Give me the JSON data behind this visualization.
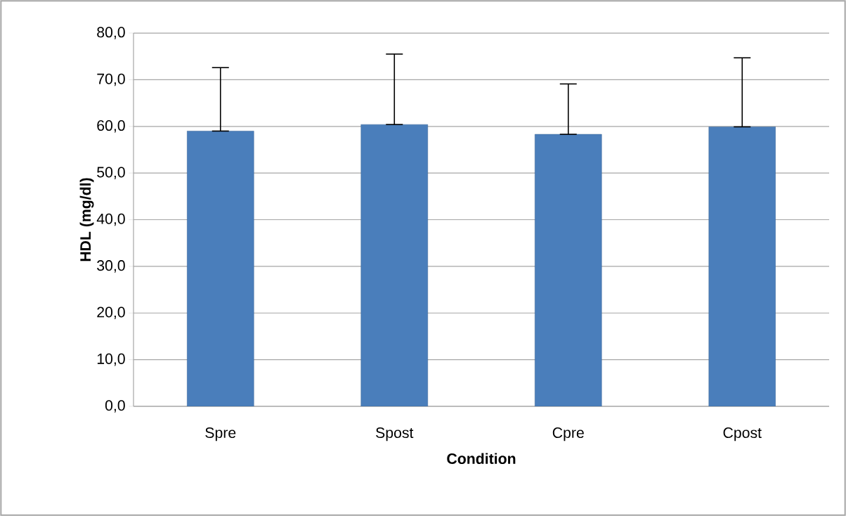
{
  "chart_data": {
    "type": "bar",
    "xlabel": "Condition",
    "ylabel": "HDL (mg/dl)",
    "categories": [
      "Spre",
      "Spost",
      "Cpre",
      "Cpost"
    ],
    "values": [
      59.0,
      60.4,
      58.3,
      59.9
    ],
    "errors": [
      [
        59.0,
        72.6
      ],
      [
        60.4,
        75.5
      ],
      [
        58.3,
        69.1
      ],
      [
        59.9,
        74.7
      ]
    ],
    "color": "#4a7ebb",
    "ylim": [
      0,
      80
    ],
    "yticks": [
      {
        "value": 0,
        "label": "0,0"
      },
      {
        "value": 10,
        "label": "10,0"
      },
      {
        "value": 20,
        "label": "20,0"
      },
      {
        "value": 30,
        "label": "30,0"
      },
      {
        "value": 40,
        "label": "40,0"
      },
      {
        "value": 50,
        "label": "50,0"
      },
      {
        "value": 60,
        "label": "60,0"
      },
      {
        "value": 70,
        "label": "70,0"
      },
      {
        "value": 80,
        "label": "80,0"
      }
    ],
    "grid": "y"
  }
}
